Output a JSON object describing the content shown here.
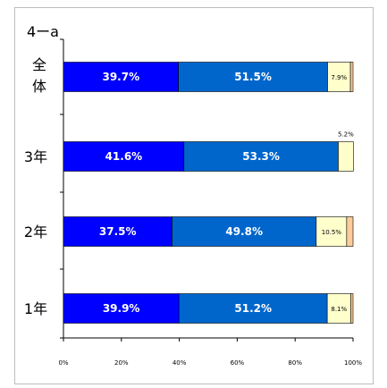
{
  "chart_data": {
    "type": "bar",
    "orientation": "horizontal",
    "stacked": true,
    "title": "4ーa",
    "categories": [
      "全体",
      "3年",
      "2年",
      "1年"
    ],
    "category_display": [
      [
        "全",
        "体"
      ],
      [
        "3年"
      ],
      [
        "2年"
      ],
      [
        "1年"
      ]
    ],
    "series": [
      {
        "values": [
          39.7,
          41.6,
          37.5,
          39.9
        ],
        "labels": [
          "39.7%",
          "41.6%",
          "37.5%",
          "39.9%"
        ],
        "color": "#0000ff"
      },
      {
        "values": [
          51.5,
          53.3,
          49.8,
          51.2
        ],
        "labels": [
          "51.5%",
          "53.3%",
          "49.8%",
          "51.2%"
        ],
        "color": "#0066cc"
      },
      {
        "values": [
          7.9,
          5.2,
          10.5,
          8.1
        ],
        "labels": [
          "7.9%",
          "5.2%",
          "10.5%",
          "8.1%"
        ],
        "color": "#ffffcc"
      },
      {
        "values": [
          0.9,
          0.0,
          2.2,
          0.8
        ],
        "labels": [
          "",
          "",
          "",
          ""
        ],
        "color": "#ffcc99"
      }
    ],
    "outside_labels": [
      false,
      true,
      false,
      false
    ],
    "x_ticks": [
      "0%",
      "20%",
      "40%",
      "60%",
      "80%",
      "100%"
    ],
    "xlim": [
      0,
      100
    ],
    "grid": false,
    "legend": "none"
  }
}
